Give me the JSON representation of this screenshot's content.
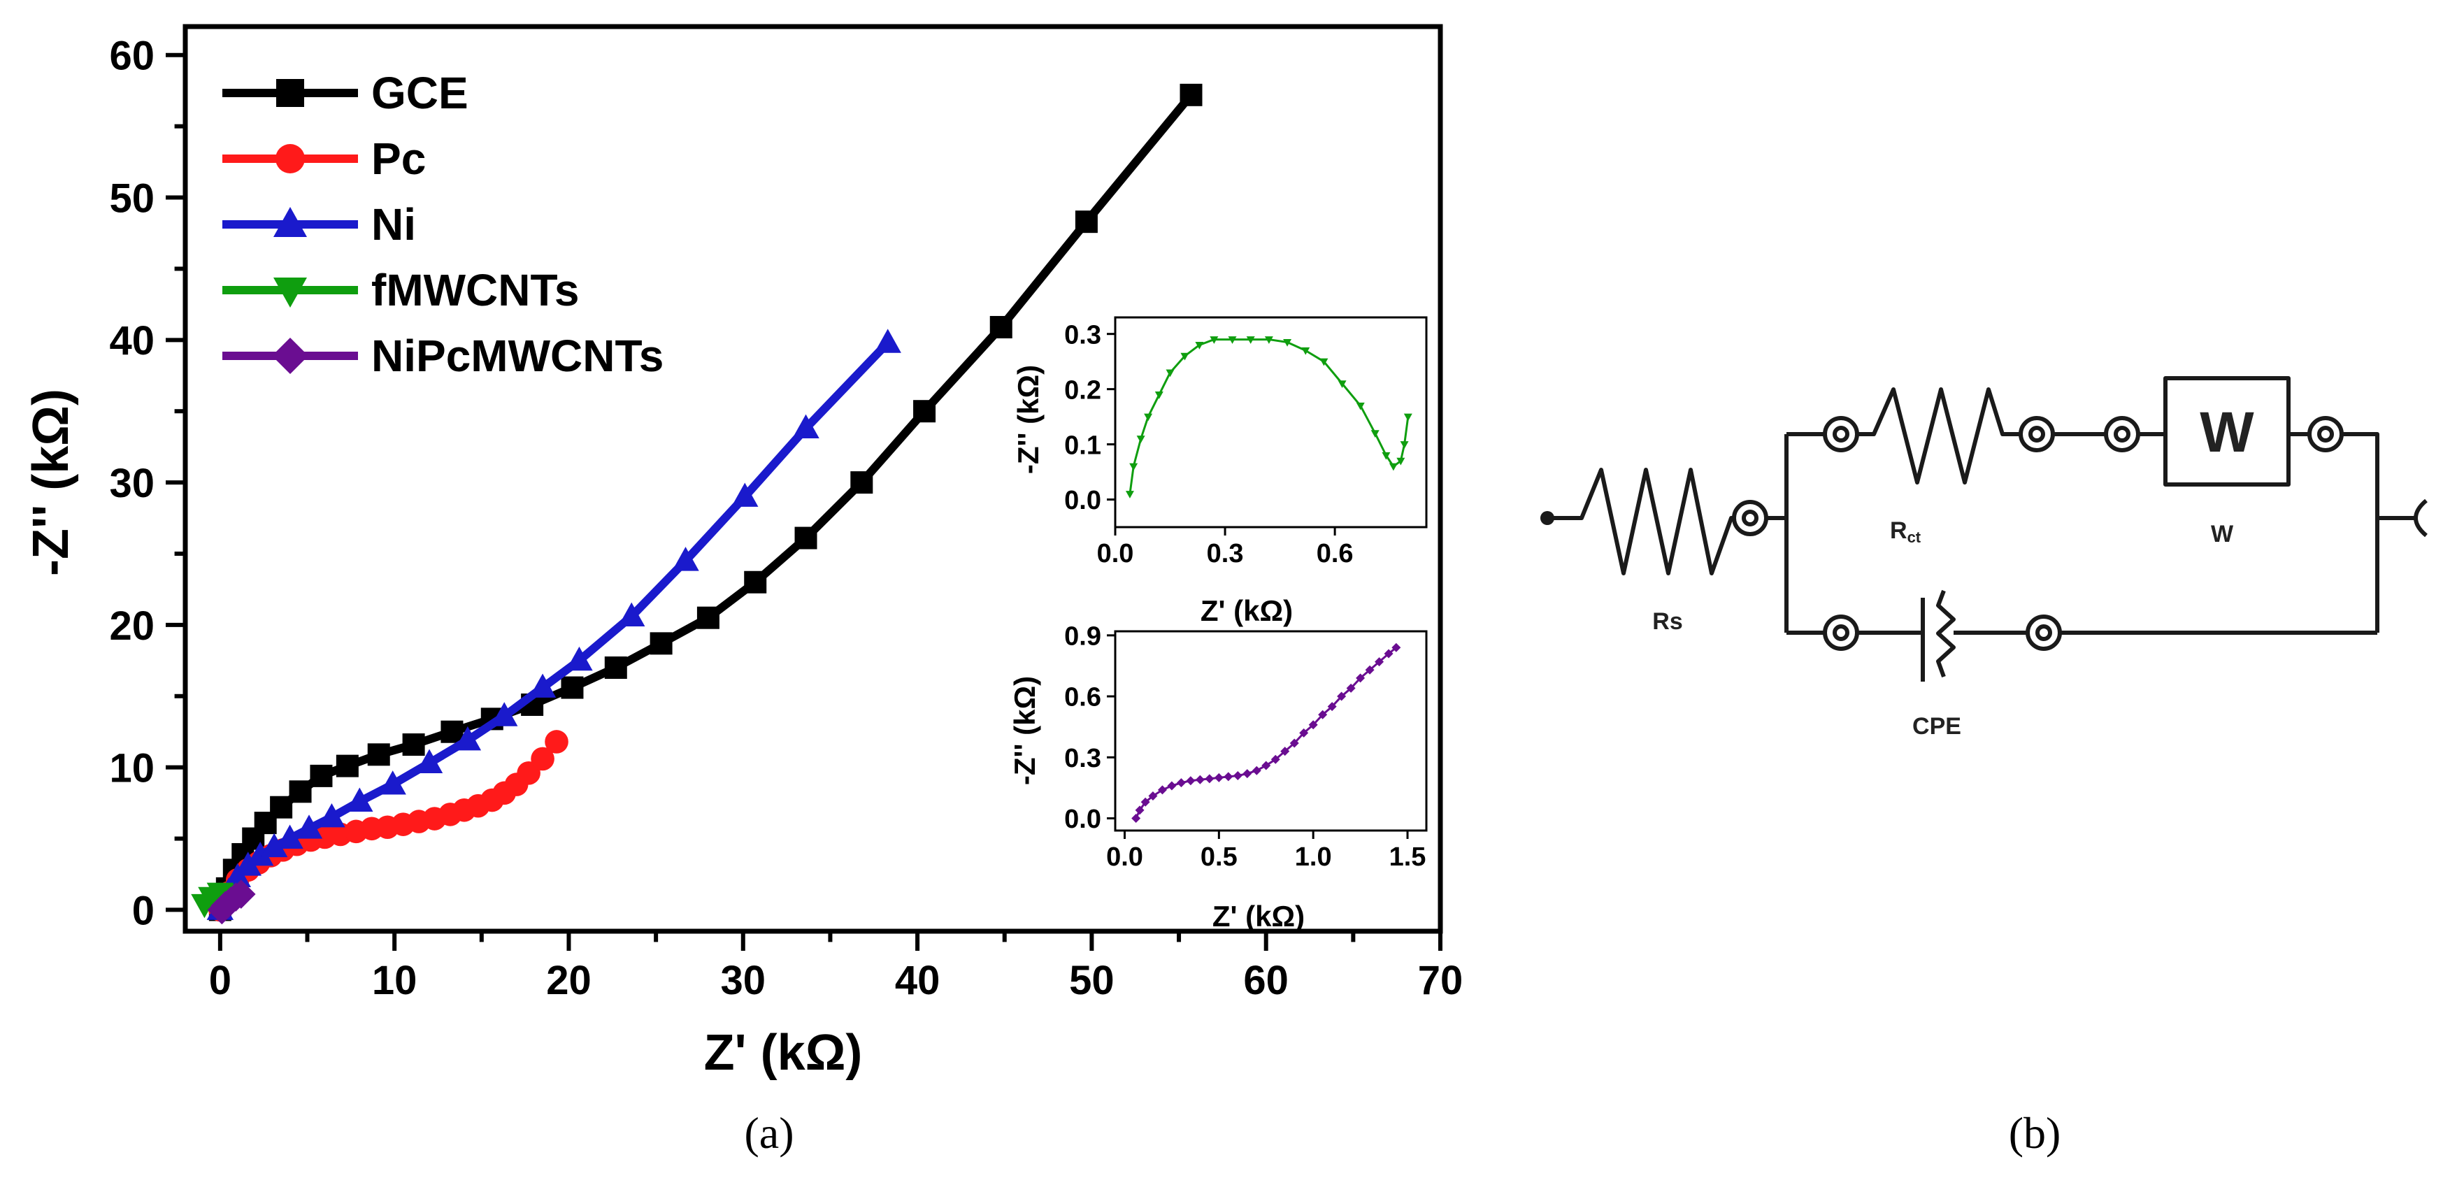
{
  "chart_data": [
    {
      "type": "line",
      "panel": "(a)",
      "xlabel": "Z' (kΩ)",
      "ylabel": "-Z'' (kΩ)",
      "xlim": [
        -2,
        70
      ],
      "ylim": [
        -1.5,
        62
      ],
      "xticks": [
        0,
        10,
        20,
        30,
        40,
        50,
        60,
        70
      ],
      "yticks": [
        0,
        10,
        20,
        30,
        40,
        50,
        60
      ],
      "legend_position": "top-left",
      "series": [
        {
          "name": "GCE",
          "color": "#000000",
          "marker": "square",
          "x": [
            0,
            0.4,
            0.8,
            1.3,
            1.9,
            2.6,
            3.5,
            4.6,
            5.8,
            7.3,
            9.1,
            11.1,
            13.3,
            15.6,
            17.9,
            20.2,
            22.7,
            25.3,
            28.0,
            30.7,
            33.6,
            36.8,
            40.4,
            44.8,
            49.7,
            55.7
          ],
          "y": [
            0,
            1.5,
            2.8,
            3.9,
            5.0,
            6.1,
            7.2,
            8.3,
            9.4,
            10.1,
            10.9,
            11.6,
            12.5,
            13.4,
            14.4,
            15.6,
            17.0,
            18.7,
            20.5,
            23.0,
            26.1,
            30.0,
            35.0,
            40.9,
            48.3,
            57.2
          ]
        },
        {
          "name": "Pc",
          "color": "#ff1a1a",
          "marker": "circle",
          "x": [
            0,
            0.5,
            1.0,
            1.6,
            2.2,
            2.9,
            3.6,
            4.4,
            5.2,
            6.0,
            6.9,
            7.8,
            8.7,
            9.6,
            10.5,
            11.4,
            12.3,
            13.2,
            14.0,
            14.8,
            15.6,
            16.3,
            17.0,
            17.7,
            18.5,
            19.3
          ],
          "y": [
            0,
            1.2,
            2.1,
            2.8,
            3.3,
            3.8,
            4.2,
            4.6,
            4.9,
            5.1,
            5.3,
            5.5,
            5.7,
            5.8,
            6.0,
            6.2,
            6.4,
            6.7,
            7.0,
            7.3,
            7.7,
            8.2,
            8.8,
            9.6,
            10.6,
            11.8
          ]
        },
        {
          "name": "Ni",
          "color": "#1a1acc",
          "marker": "triangle-up",
          "x": [
            0,
            0.5,
            1.0,
            1.6,
            2.3,
            3.1,
            4.0,
            5.1,
            6.4,
            8.0,
            9.9,
            12.0,
            14.2,
            16.3,
            18.5,
            20.6,
            23.6,
            26.7,
            30.1,
            33.6,
            38.3
          ],
          "y": [
            0,
            1.3,
            2.3,
            3.1,
            3.8,
            4.4,
            5.0,
            5.7,
            6.5,
            7.6,
            8.8,
            10.3,
            11.9,
            13.6,
            15.6,
            17.5,
            20.6,
            24.5,
            29.0,
            33.8,
            39.8
          ]
        },
        {
          "name": "fMWCNTs",
          "color": "#0f9e0f",
          "marker": "triangle-down",
          "x": [
            -0.9,
            -0.5,
            0,
            0.4,
            0.8
          ],
          "y": [
            0.4,
            0.9,
            1.2,
            1.1,
            0.9
          ]
        },
        {
          "name": "NiPcMWCNTs",
          "color": "#6a0d91",
          "marker": "diamond",
          "x": [
            0.1,
            0.3,
            0.6,
            0.9,
            1.2
          ],
          "y": [
            0.0,
            0.3,
            0.6,
            0.9,
            1.1
          ]
        }
      ]
    },
    {
      "type": "line",
      "panel": "inset-top",
      "xlabel": "Z' (kΩ)",
      "ylabel": "-Z'' (kΩ)",
      "xlim": [
        0,
        0.85
      ],
      "ylim": [
        -0.05,
        0.33
      ],
      "xticks": [
        "0.0",
        "0.3",
        "0.6"
      ],
      "yticks": [
        "0.0",
        "0.1",
        "0.2",
        "0.3"
      ],
      "series": [
        {
          "name": "fMWCNTs",
          "color": "#0f9e0f",
          "marker": "triangle-down",
          "x": [
            0.04,
            0.05,
            0.07,
            0.09,
            0.12,
            0.15,
            0.19,
            0.23,
            0.27,
            0.32,
            0.37,
            0.42,
            0.47,
            0.52,
            0.57,
            0.62,
            0.67,
            0.71,
            0.74,
            0.76,
            0.78,
            0.79,
            0.8
          ],
          "y": [
            0.01,
            0.06,
            0.11,
            0.15,
            0.19,
            0.23,
            0.26,
            0.28,
            0.29,
            0.29,
            0.29,
            0.29,
            0.285,
            0.27,
            0.25,
            0.21,
            0.17,
            0.12,
            0.08,
            0.06,
            0.07,
            0.1,
            0.15
          ]
        }
      ]
    },
    {
      "type": "line",
      "panel": "inset-bottom",
      "xlabel": "Z' (kΩ)",
      "ylabel": "-Z'' (kΩ)",
      "xlim": [
        -0.05,
        1.6
      ],
      "ylim": [
        -0.06,
        0.92
      ],
      "xticks": [
        "0.0",
        "0.5",
        "1.0",
        "1.5"
      ],
      "yticks": [
        "0.0",
        "0.3",
        "0.6",
        "0.9"
      ],
      "series": [
        {
          "name": "NiPcMWCNTs",
          "color": "#6a0d91",
          "marker": "diamond",
          "x": [
            0.06,
            0.08,
            0.11,
            0.15,
            0.2,
            0.25,
            0.3,
            0.35,
            0.4,
            0.45,
            0.5,
            0.55,
            0.6,
            0.65,
            0.7,
            0.75,
            0.8,
            0.85,
            0.9,
            0.95,
            1.0,
            1.05,
            1.1,
            1.15,
            1.2,
            1.25,
            1.3,
            1.35,
            1.4,
            1.44
          ],
          "y": [
            0.0,
            0.04,
            0.08,
            0.11,
            0.14,
            0.16,
            0.175,
            0.185,
            0.19,
            0.195,
            0.2,
            0.205,
            0.21,
            0.22,
            0.235,
            0.26,
            0.29,
            0.33,
            0.37,
            0.42,
            0.46,
            0.51,
            0.55,
            0.6,
            0.64,
            0.69,
            0.73,
            0.77,
            0.81,
            0.84
          ]
        }
      ]
    }
  ],
  "captions": {
    "a": "(a)",
    "b": "(b)"
  },
  "circuit": {
    "rs": "Rs",
    "rct": "R",
    "rct_sub": "ct",
    "w_box": "W",
    "w_label": "W",
    "cpe": "CPE"
  }
}
